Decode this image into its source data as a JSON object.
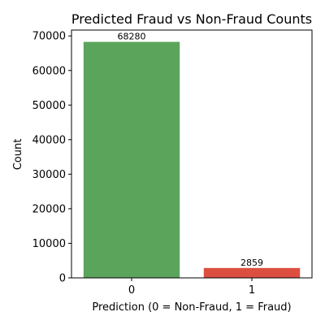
{
  "chart_data": {
    "type": "bar",
    "title": "Predicted Fraud vs Non-Fraud Counts",
    "xlabel": "Prediction (0 = Non-Fraud, 1 = Fraud)",
    "ylabel": "Count",
    "categories": [
      "0",
      "1"
    ],
    "values": [
      68280,
      2859
    ],
    "data_labels": [
      "68280",
      "2859"
    ],
    "colors": [
      "#5aa55b",
      "#dc4f40"
    ],
    "ylim": [
      0,
      71700
    ],
    "yticks": [
      0,
      10000,
      20000,
      30000,
      40000,
      50000,
      60000,
      70000
    ],
    "ytick_labels": [
      "0",
      "10000",
      "20000",
      "30000",
      "40000",
      "50000",
      "60000",
      "70000"
    ],
    "grid": false,
    "legend": "none"
  }
}
